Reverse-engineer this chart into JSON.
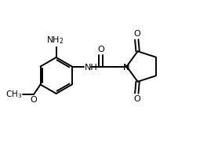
{
  "background_color": "#ffffff",
  "line_color": "#000000",
  "text_color": "#000000",
  "figsize": [
    2.78,
    1.92
  ],
  "dpi": 100,
  "xlim": [
    0,
    10
  ],
  "ylim": [
    0,
    7
  ]
}
